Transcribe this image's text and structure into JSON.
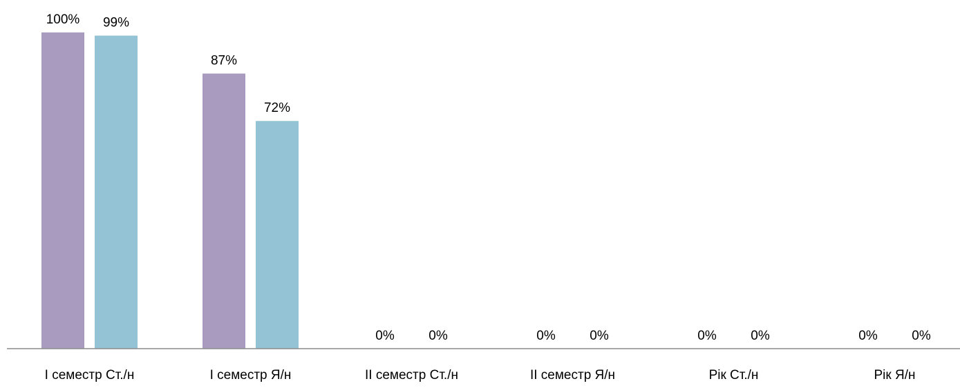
{
  "chart_data": {
    "type": "bar",
    "title": "",
    "xlabel": "",
    "ylabel": "",
    "ylim": [
      0,
      100
    ],
    "grid": false,
    "legend": "none",
    "categories": [
      "I семестр Ст./н",
      "I семестр Я/н",
      "II семестр Ст./н",
      "II семестр Я/н",
      "Рік Ст./н",
      "Рік Я/н"
    ],
    "series": [
      {
        "color": "#a89bbf",
        "values": [
          100,
          87,
          0,
          0,
          0,
          0
        ],
        "labels": [
          "100%",
          "87%",
          "0%",
          "0%",
          "0%",
          "0%"
        ]
      },
      {
        "color": "#93c3d4",
        "values": [
          99,
          72,
          0,
          0,
          0,
          0
        ],
        "labels": [
          "99%",
          "72%",
          "0%",
          "0%",
          "0%",
          "0%"
        ]
      }
    ],
    "axis_color": "#8c8c8c"
  }
}
